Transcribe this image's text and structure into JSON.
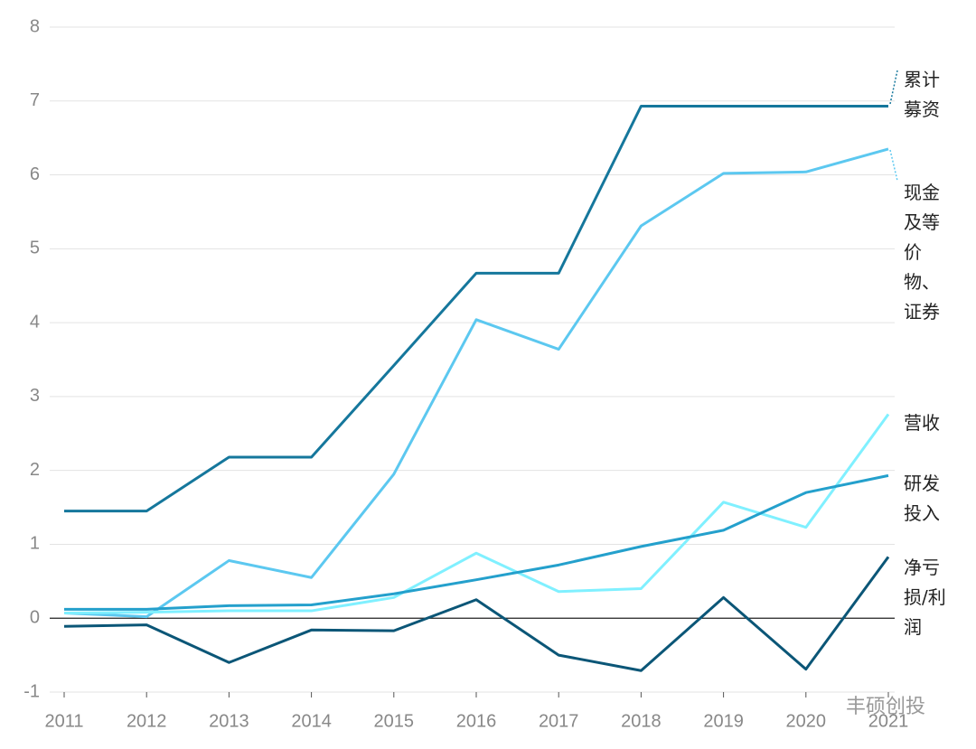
{
  "chart_data": {
    "type": "line",
    "x": [
      2011,
      2012,
      2013,
      2014,
      2015,
      2016,
      2017,
      2018,
      2019,
      2020,
      2021
    ],
    "series": [
      {
        "name": "累计募资",
        "color": "#15779c",
        "values": [
          1.45,
          1.45,
          2.18,
          2.18,
          3.42,
          4.67,
          4.67,
          6.93,
          6.93,
          6.93,
          6.93
        ]
      },
      {
        "name": "现金及等价物、证券",
        "color": "#5cc8f0",
        "values": [
          0.07,
          0.02,
          0.78,
          0.55,
          1.95,
          4.04,
          3.64,
          5.31,
          6.02,
          6.04,
          6.35
        ]
      },
      {
        "name": "营收",
        "color": "#80f0ff",
        "values": [
          0.07,
          0.08,
          0.1,
          0.1,
          0.28,
          0.88,
          0.36,
          0.4,
          1.57,
          1.23,
          2.76
        ]
      },
      {
        "name": "研发投入",
        "color": "#24a0cc",
        "values": [
          0.12,
          0.12,
          0.17,
          0.18,
          0.33,
          0.52,
          0.72,
          0.97,
          1.19,
          1.7,
          1.93
        ]
      },
      {
        "name": "净亏损/利润",
        "color": "#0b5677",
        "values": [
          -0.11,
          -0.09,
          -0.6,
          -0.16,
          -0.17,
          0.25,
          -0.5,
          -0.71,
          0.28,
          -0.69,
          0.83
        ]
      }
    ],
    "xlim": [
      2011,
      2021
    ],
    "xticks": [
      2011,
      2012,
      2013,
      2014,
      2015,
      2016,
      2017,
      2018,
      2019,
      2020,
      2021
    ],
    "ylim": [
      -1,
      8
    ],
    "yticks": [
      -1,
      0,
      1,
      2,
      3,
      4,
      5,
      6,
      7,
      8
    ],
    "grid": true,
    "watermark": "丰硕创投"
  }
}
